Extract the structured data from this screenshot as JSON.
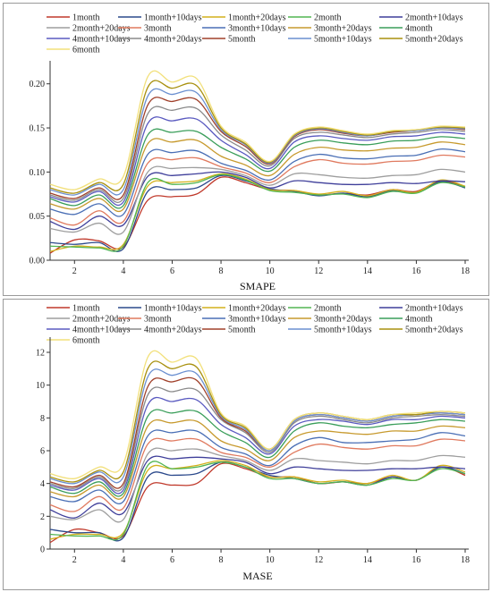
{
  "chart_data": [
    {
      "type": "line",
      "xlabel": "SMAPE",
      "ylabel": "",
      "xlim": [
        1,
        18
      ],
      "ylim": [
        0,
        0.22
      ],
      "xticks": [
        2,
        4,
        6,
        8,
        10,
        12,
        14,
        16,
        18
      ],
      "yticks": [
        0,
        0.05,
        0.1,
        0.15,
        0.2
      ],
      "ytick_labels": [
        "0.00",
        "0.05",
        "0.10",
        "0.15",
        "0.20"
      ],
      "x": [
        1,
        2,
        3,
        4,
        5,
        6,
        7,
        8,
        9,
        10,
        11,
        12,
        13,
        14,
        15,
        16,
        17,
        18
      ],
      "legend_position": "top",
      "series": [
        {
          "name": "1month",
          "color": "#c0392b",
          "values": [
            0.008,
            0.023,
            0.022,
            0.015,
            0.068,
            0.072,
            0.075,
            0.094,
            0.088,
            0.08,
            0.079,
            0.074,
            0.076,
            0.074,
            0.08,
            0.078,
            0.09,
            0.083
          ]
        },
        {
          "name": "1month+10days",
          "color": "#2c4a8c",
          "values": [
            0.02,
            0.018,
            0.02,
            0.013,
            0.078,
            0.08,
            0.082,
            0.096,
            0.09,
            0.081,
            0.078,
            0.073,
            0.076,
            0.072,
            0.079,
            0.077,
            0.089,
            0.082
          ]
        },
        {
          "name": "1month+20days",
          "color": "#d4b11c",
          "values": [
            0.01,
            0.016,
            0.015,
            0.018,
            0.084,
            0.088,
            0.09,
            0.098,
            0.092,
            0.08,
            0.079,
            0.075,
            0.078,
            0.073,
            0.08,
            0.077,
            0.091,
            0.084
          ]
        },
        {
          "name": "2month",
          "color": "#52b552",
          "values": [
            0.016,
            0.015,
            0.014,
            0.016,
            0.088,
            0.086,
            0.088,
            0.097,
            0.091,
            0.079,
            0.077,
            0.074,
            0.075,
            0.071,
            0.078,
            0.076,
            0.088,
            0.083
          ]
        },
        {
          "name": "2month+10days",
          "color": "#3f3f9a",
          "values": [
            0.044,
            0.035,
            0.05,
            0.04,
            0.095,
            0.096,
            0.098,
            0.1,
            0.094,
            0.082,
            0.09,
            0.088,
            0.086,
            0.086,
            0.088,
            0.087,
            0.09,
            0.089
          ]
        },
        {
          "name": "2month+20days",
          "color": "#9e9e9e",
          "values": [
            0.036,
            0.032,
            0.042,
            0.032,
            0.1,
            0.104,
            0.105,
            0.103,
            0.096,
            0.085,
            0.098,
            0.097,
            0.094,
            0.093,
            0.096,
            0.097,
            0.103,
            0.1
          ]
        },
        {
          "name": "3month",
          "color": "#e07a5f",
          "values": [
            0.048,
            0.04,
            0.056,
            0.044,
            0.11,
            0.114,
            0.116,
            0.106,
            0.099,
            0.088,
            0.106,
            0.114,
            0.11,
            0.109,
            0.112,
            0.113,
            0.119,
            0.117
          ]
        },
        {
          "name": "3month+10days",
          "color": "#4a6fb5",
          "values": [
            0.058,
            0.052,
            0.064,
            0.052,
            0.12,
            0.122,
            0.124,
            0.11,
            0.102,
            0.091,
            0.112,
            0.12,
            0.116,
            0.115,
            0.118,
            0.119,
            0.126,
            0.123
          ]
        },
        {
          "name": "3month+20days",
          "color": "#c79a2e",
          "values": [
            0.064,
            0.058,
            0.07,
            0.058,
            0.132,
            0.134,
            0.136,
            0.118,
            0.108,
            0.096,
            0.12,
            0.128,
            0.125,
            0.124,
            0.127,
            0.128,
            0.134,
            0.131
          ]
        },
        {
          "name": "4month",
          "color": "#3a9e5a",
          "values": [
            0.07,
            0.062,
            0.074,
            0.062,
            0.142,
            0.145,
            0.146,
            0.128,
            0.115,
            0.101,
            0.128,
            0.136,
            0.133,
            0.131,
            0.135,
            0.136,
            0.14,
            0.138
          ]
        },
        {
          "name": "4month+10days",
          "color": "#5a5ac0",
          "values": [
            0.072,
            0.066,
            0.078,
            0.066,
            0.155,
            0.158,
            0.16,
            0.136,
            0.12,
            0.104,
            0.134,
            0.141,
            0.138,
            0.136,
            0.14,
            0.141,
            0.145,
            0.143
          ]
        },
        {
          "name": "4month+20days",
          "color": "#8a8a8a",
          "values": [
            0.074,
            0.068,
            0.08,
            0.07,
            0.166,
            0.17,
            0.172,
            0.142,
            0.125,
            0.107,
            0.138,
            0.145,
            0.142,
            0.139,
            0.143,
            0.145,
            0.148,
            0.146
          ]
        },
        {
          "name": "5month",
          "color": "#a0402a",
          "values": [
            0.076,
            0.07,
            0.082,
            0.074,
            0.176,
            0.18,
            0.182,
            0.146,
            0.129,
            0.109,
            0.14,
            0.148,
            0.144,
            0.141,
            0.145,
            0.147,
            0.15,
            0.148
          ]
        },
        {
          "name": "5month+10days",
          "color": "#6a8fd0",
          "values": [
            0.08,
            0.074,
            0.086,
            0.08,
            0.186,
            0.188,
            0.19,
            0.148,
            0.131,
            0.11,
            0.141,
            0.149,
            0.145,
            0.141,
            0.146,
            0.147,
            0.15,
            0.149
          ]
        },
        {
          "name": "5month+20days",
          "color": "#a8900e",
          "values": [
            0.082,
            0.076,
            0.088,
            0.086,
            0.196,
            0.195,
            0.198,
            0.15,
            0.132,
            0.111,
            0.142,
            0.15,
            0.146,
            0.142,
            0.146,
            0.148,
            0.151,
            0.15
          ]
        },
        {
          "name": "6month",
          "color": "#f2e07a",
          "values": [
            0.086,
            0.08,
            0.092,
            0.095,
            0.208,
            0.202,
            0.206,
            0.152,
            0.134,
            0.112,
            0.143,
            0.151,
            0.147,
            0.143,
            0.147,
            0.148,
            0.152,
            0.151
          ]
        }
      ]
    },
    {
      "type": "line",
      "xlabel": "MASE",
      "ylabel": "",
      "xlim": [
        1,
        18
      ],
      "ylim": [
        0,
        12.6
      ],
      "xticks": [
        2,
        4,
        6,
        8,
        10,
        12,
        14,
        16,
        18
      ],
      "yticks": [
        0,
        2,
        4,
        6,
        8,
        10,
        12
      ],
      "ytick_labels": [
        "0",
        "2",
        "4",
        "6",
        "8",
        "10",
        "12"
      ],
      "x": [
        1,
        2,
        3,
        4,
        5,
        6,
        7,
        8,
        9,
        10,
        11,
        12,
        13,
        14,
        15,
        16,
        17,
        18
      ],
      "legend_position": "top",
      "series": [
        {
          "name": "1month",
          "color": "#c0392b",
          "values": [
            0.4,
            1.2,
            1.0,
            0.8,
            3.8,
            3.9,
            4.0,
            5.2,
            4.9,
            4.4,
            4.4,
            4.0,
            4.1,
            4.0,
            4.4,
            4.2,
            5.0,
            4.5
          ]
        },
        {
          "name": "1month+10days",
          "color": "#2c4a8c",
          "values": [
            1.2,
            1.0,
            1.0,
            0.7,
            4.4,
            4.5,
            4.6,
            5.3,
            5.0,
            4.5,
            4.3,
            4.0,
            4.1,
            3.9,
            4.4,
            4.2,
            5.0,
            4.6
          ]
        },
        {
          "name": "1month+20days",
          "color": "#d4b11c",
          "values": [
            0.6,
            0.9,
            0.9,
            1.0,
            4.8,
            4.9,
            5.1,
            5.4,
            5.1,
            4.4,
            4.4,
            4.1,
            4.2,
            4.0,
            4.5,
            4.2,
            5.1,
            4.7
          ]
        },
        {
          "name": "2month",
          "color": "#52b552",
          "values": [
            0.9,
            0.8,
            0.8,
            0.9,
            5.1,
            4.9,
            5.0,
            5.3,
            5.0,
            4.3,
            4.3,
            4.0,
            4.1,
            3.9,
            4.3,
            4.2,
            4.9,
            4.6
          ]
        },
        {
          "name": "2month+10days",
          "color": "#3f3f9a",
          "values": [
            2.4,
            1.9,
            2.8,
            2.2,
            5.4,
            5.5,
            5.6,
            5.5,
            5.3,
            4.6,
            5.0,
            4.9,
            4.8,
            4.8,
            4.9,
            4.9,
            5.0,
            4.9
          ]
        },
        {
          "name": "2month+20days",
          "color": "#9e9e9e",
          "values": [
            2.0,
            1.8,
            2.4,
            1.8,
            5.8,
            6.0,
            6.1,
            5.7,
            5.4,
            4.8,
            5.5,
            5.4,
            5.3,
            5.2,
            5.4,
            5.4,
            5.7,
            5.6
          ]
        },
        {
          "name": "3month",
          "color": "#e07a5f",
          "values": [
            2.7,
            2.3,
            3.2,
            2.5,
            6.4,
            6.6,
            6.7,
            5.9,
            5.6,
            5.0,
            5.9,
            6.4,
            6.2,
            6.1,
            6.3,
            6.3,
            6.7,
            6.6
          ]
        },
        {
          "name": "3month+10days",
          "color": "#4a6fb5",
          "values": [
            3.2,
            2.9,
            3.6,
            2.9,
            6.9,
            7.1,
            7.2,
            6.2,
            5.8,
            5.1,
            6.3,
            6.8,
            6.5,
            6.5,
            6.6,
            6.7,
            7.1,
            6.9
          ]
        },
        {
          "name": "3month+20days",
          "color": "#c79a2e",
          "values": [
            3.5,
            3.2,
            3.9,
            3.2,
            7.5,
            7.7,
            7.8,
            6.6,
            6.1,
            5.4,
            6.8,
            7.2,
            7.1,
            7.0,
            7.2,
            7.2,
            7.5,
            7.4
          ]
        },
        {
          "name": "4month",
          "color": "#3a9e5a",
          "values": [
            3.8,
            3.4,
            4.1,
            3.4,
            8.1,
            8.3,
            8.4,
            7.2,
            6.5,
            5.6,
            7.2,
            7.7,
            7.5,
            7.4,
            7.6,
            7.7,
            7.9,
            7.8
          ]
        },
        {
          "name": "4month+10days",
          "color": "#5a5ac0",
          "values": [
            3.9,
            3.6,
            4.3,
            3.6,
            8.8,
            9.0,
            9.1,
            7.6,
            6.8,
            5.8,
            7.5,
            7.9,
            7.8,
            7.6,
            7.9,
            7.9,
            8.1,
            8.0
          ]
        },
        {
          "name": "4month+20days",
          "color": "#8a8a8a",
          "values": [
            4.0,
            3.7,
            4.4,
            3.8,
            9.4,
            9.6,
            9.7,
            7.9,
            7.1,
            5.9,
            7.7,
            8.1,
            7.9,
            7.7,
            8.0,
            8.1,
            8.2,
            8.1
          ]
        },
        {
          "name": "5month",
          "color": "#a0402a",
          "values": [
            4.1,
            3.8,
            4.5,
            4.0,
            9.9,
            10.2,
            10.3,
            8.0,
            7.2,
            6.0,
            7.8,
            8.2,
            8.0,
            7.8,
            8.1,
            8.2,
            8.3,
            8.2
          ]
        },
        {
          "name": "5month+10days",
          "color": "#6a8fd0",
          "values": [
            4.3,
            4.0,
            4.7,
            4.4,
            10.5,
            10.6,
            10.7,
            8.1,
            7.3,
            6.0,
            7.8,
            8.2,
            8.0,
            7.8,
            8.1,
            8.2,
            8.3,
            8.2
          ]
        },
        {
          "name": "5month+20days",
          "color": "#a8900e",
          "values": [
            4.4,
            4.1,
            4.8,
            4.7,
            11.0,
            11.0,
            11.1,
            8.2,
            7.4,
            6.1,
            7.9,
            8.3,
            8.1,
            7.9,
            8.2,
            8.2,
            8.4,
            8.3
          ]
        },
        {
          "name": "6month",
          "color": "#f2e07a",
          "values": [
            4.6,
            4.3,
            5.0,
            5.2,
            11.7,
            11.4,
            11.6,
            8.3,
            7.5,
            6.1,
            7.9,
            8.3,
            8.1,
            7.9,
            8.2,
            8.3,
            8.4,
            8.3
          ]
        }
      ]
    }
  ]
}
